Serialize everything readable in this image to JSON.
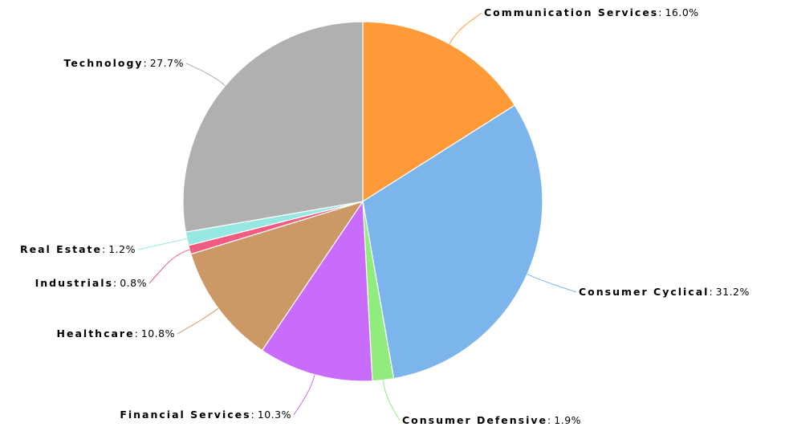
{
  "chart_data": {
    "type": "pie",
    "categories": [
      "Communication Services",
      "Consumer Cyclical",
      "Consumer Defensive",
      "Financial Services",
      "Healthcare",
      "Industrials",
      "Real Estate",
      "Technology"
    ],
    "values": [
      16.0,
      31.2,
      1.9,
      10.3,
      10.8,
      0.8,
      1.2,
      27.7
    ],
    "value_labels": [
      "16.0%",
      "31.2%",
      "1.9%",
      "10.3%",
      "10.8%",
      "0.8%",
      "1.2%",
      "27.7%"
    ],
    "colors": [
      "#fe9a37",
      "#7cb5ec",
      "#90ed7d",
      "#c96bfb",
      "#cb9866",
      "#f15c80",
      "#96e8e2",
      "#b0b0b0"
    ]
  }
}
